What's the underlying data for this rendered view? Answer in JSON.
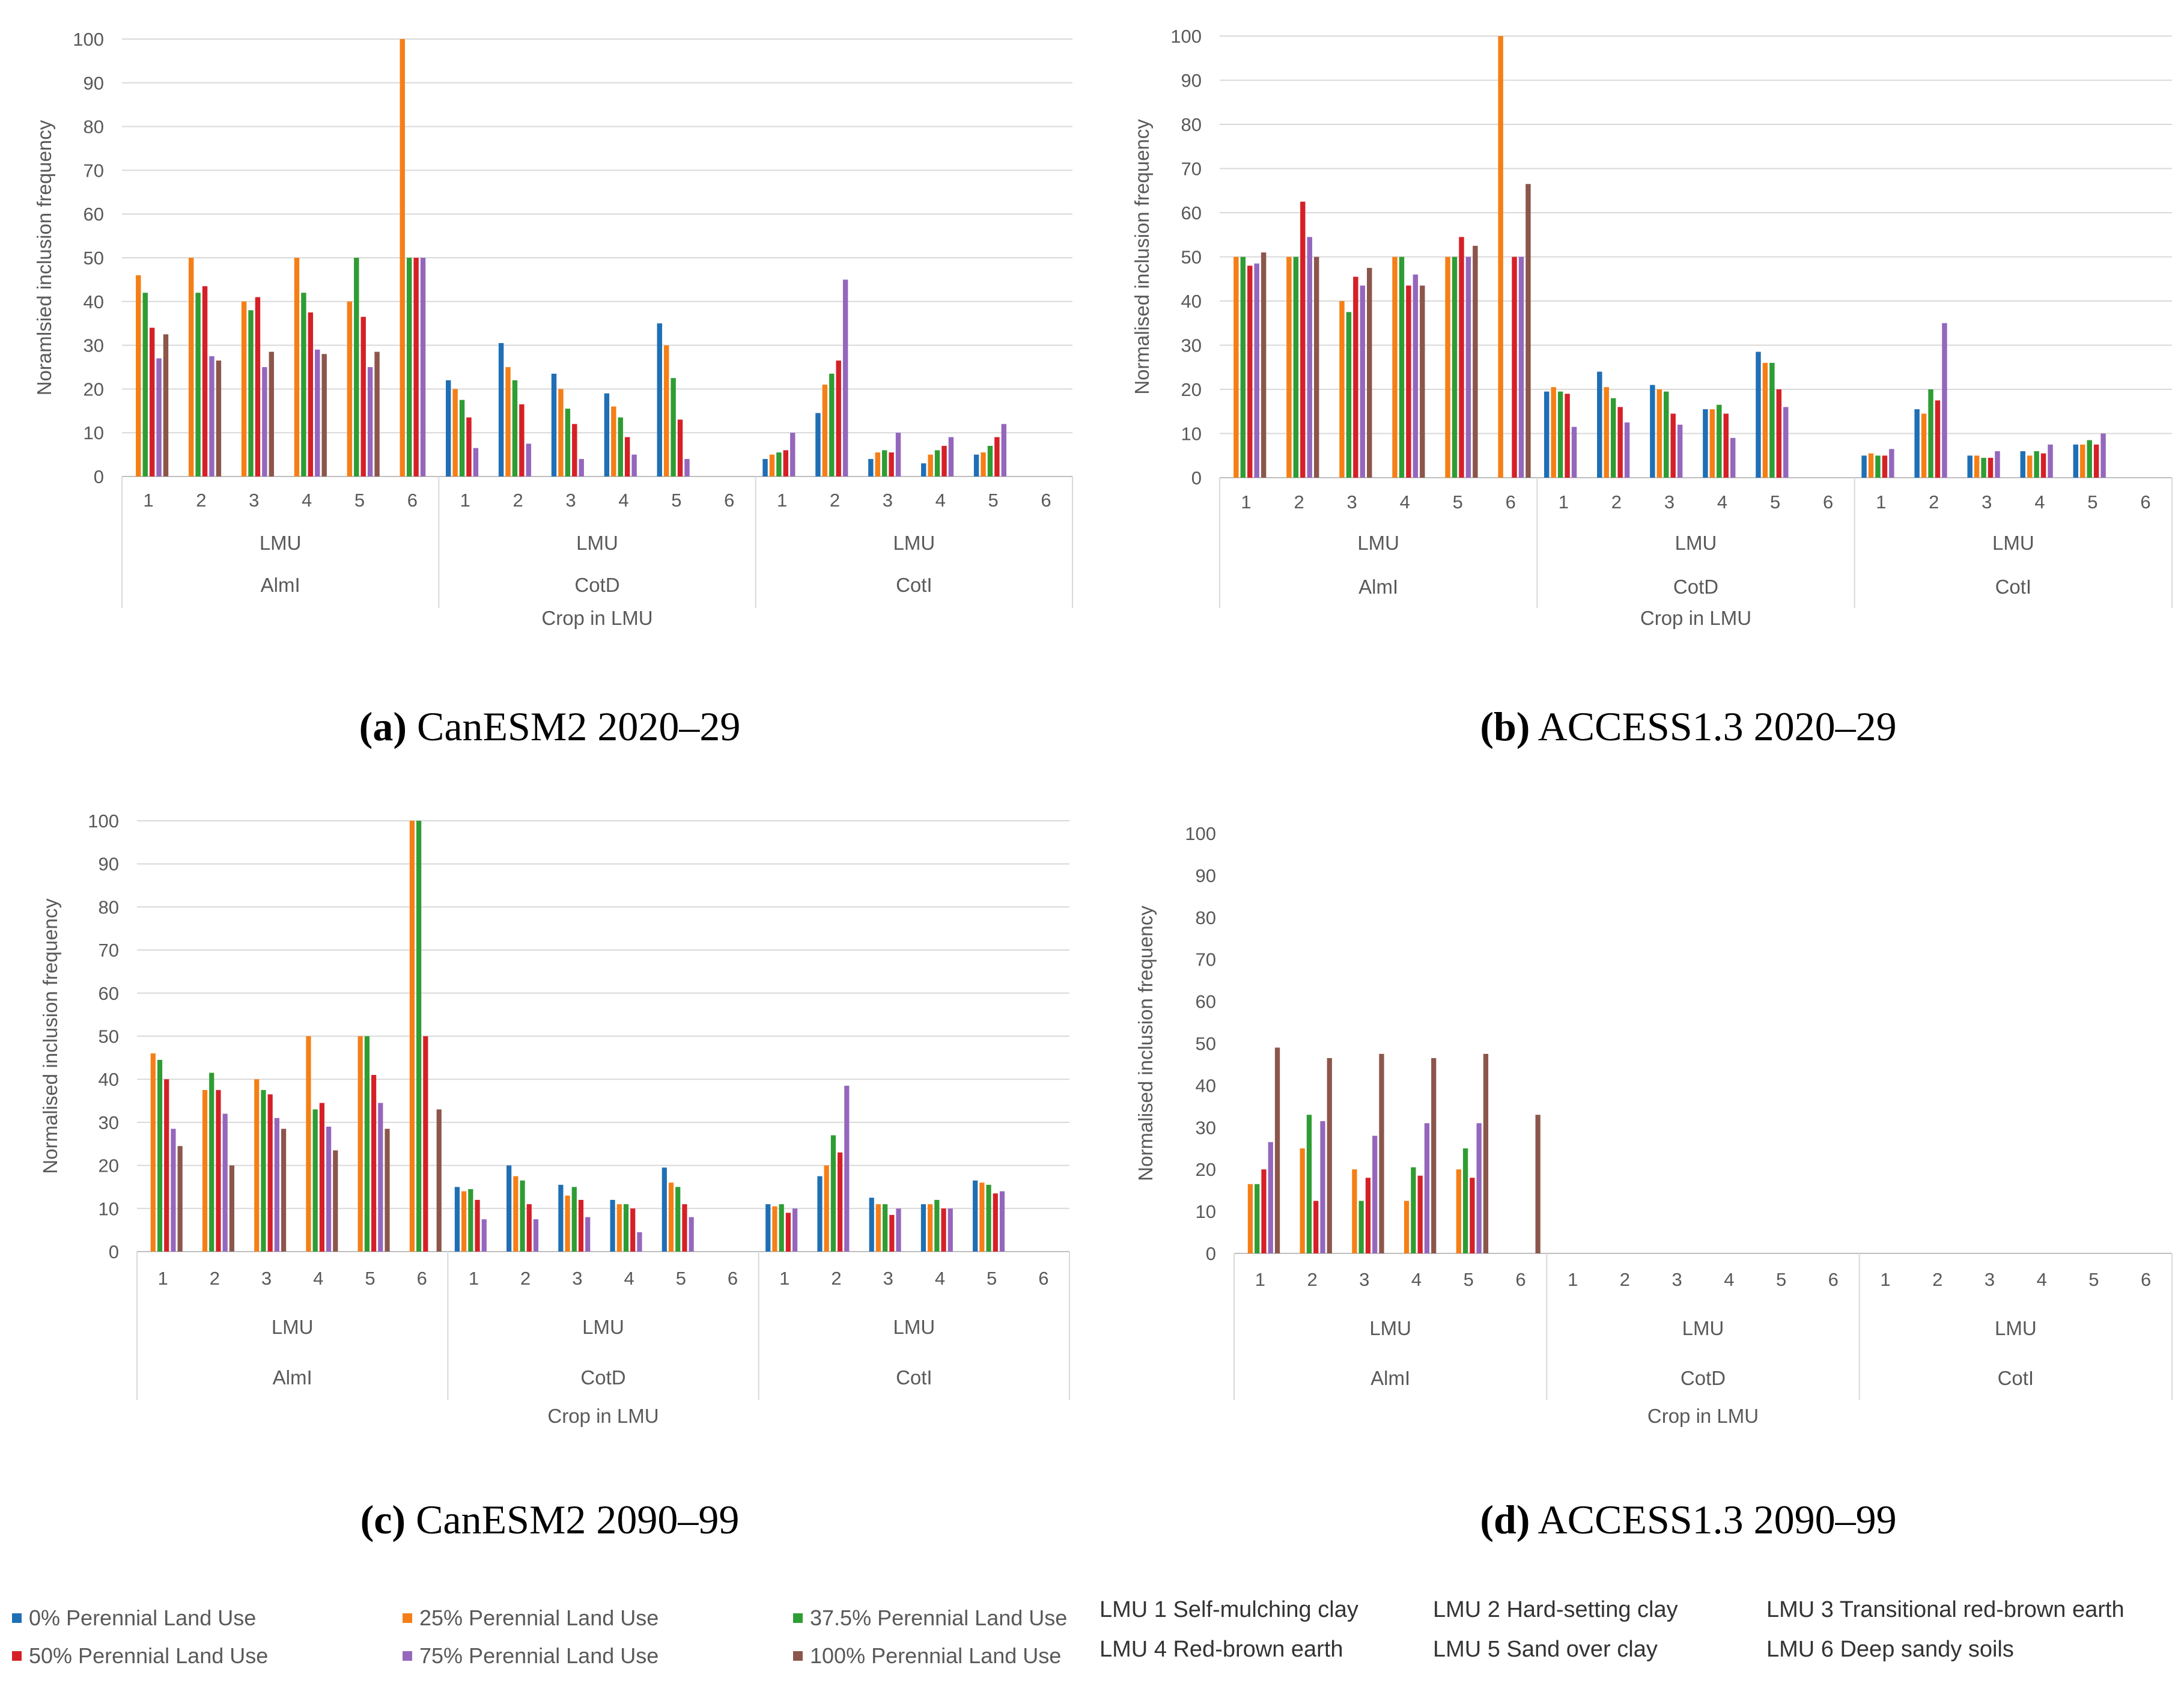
{
  "series_colors": [
    "#1f6fb5",
    "#f57f16",
    "#2e9d33",
    "#d62027",
    "#9467bd",
    "#8c564b"
  ],
  "legend": {
    "series": [
      "0% Perennial Land Use",
      "25% Perennial Land Use",
      "37.5% Perennial Land Use",
      "50% Perennial Land Use",
      "75% Perennial Land Use",
      "100% Perennial Land Use"
    ],
    "lmu": [
      "LMU 1 Self-mulching clay",
      "LMU 2 Hard-setting clay",
      "LMU 3 Transitional red-brown earth",
      "LMU 4 Red-brown earth",
      "LMU 5 Sand over clay",
      "LMU 6 Deep sandy soils"
    ]
  },
  "chart_data": [
    {
      "type": "bar",
      "caption_letter": "(a)",
      "caption_text": "CanESM2 2020–29",
      "ylabel": "Noramlsied  inclusion frequency",
      "xlabel": "Crop in LMU",
      "ylim": [
        0,
        100
      ],
      "yticks": [
        0,
        10,
        20,
        30,
        40,
        50,
        60,
        70,
        80,
        90,
        100
      ],
      "grid": true,
      "groups": [
        "AlmI",
        "CotD",
        "CotI"
      ],
      "subgroup_label": "LMU",
      "categories": [
        "1",
        "2",
        "3",
        "4",
        "5",
        "6"
      ],
      "series": [
        {
          "values": [
            [
              0,
              0,
              0,
              0,
              0,
              0
            ],
            [
              22,
              30.5,
              23.5,
              19,
              35,
              0
            ],
            [
              4,
              14.5,
              4,
              3,
              5,
              0
            ]
          ]
        },
        {
          "values": [
            [
              46,
              50,
              40,
              50,
              40,
              100
            ],
            [
              20,
              25,
              20,
              16,
              30,
              0
            ],
            [
              5,
              21,
              5.5,
              5,
              5.5,
              0
            ]
          ]
        },
        {
          "values": [
            [
              42,
              42,
              38,
              42,
              50,
              50
            ],
            [
              17.5,
              22,
              15.5,
              13.5,
              22.5,
              0
            ],
            [
              5.5,
              23.5,
              6,
              6,
              7,
              0
            ]
          ]
        },
        {
          "values": [
            [
              34,
              43.5,
              41,
              37.5,
              36.5,
              50
            ],
            [
              13.5,
              16.5,
              12,
              9,
              13,
              0
            ],
            [
              6,
              26.5,
              5.5,
              7,
              9,
              0
            ]
          ]
        },
        {
          "values": [
            [
              27,
              27.5,
              25,
              29,
              25,
              50
            ],
            [
              6.5,
              7.5,
              4,
              5,
              4,
              0
            ],
            [
              10,
              45,
              10,
              9,
              12,
              0
            ]
          ]
        },
        {
          "values": [
            [
              32.5,
              26.5,
              28.5,
              28,
              28.5,
              0
            ],
            [
              0,
              0,
              0,
              0,
              0,
              0
            ],
            [
              0,
              0,
              0,
              0,
              0,
              0
            ]
          ]
        }
      ]
    },
    {
      "type": "bar",
      "caption_letter": "(b)",
      "caption_text": "ACCESS1.3 2020–29",
      "ylabel": "Normalised inclusion frequency",
      "xlabel": "Crop in LMU",
      "ylim": [
        0,
        100
      ],
      "yticks": [
        0,
        10,
        20,
        30,
        40,
        50,
        60,
        70,
        80,
        90,
        100
      ],
      "grid": true,
      "groups": [
        "AlmI",
        "CotD",
        "CotI"
      ],
      "subgroup_label": "LMU",
      "categories": [
        "1",
        "2",
        "3",
        "4",
        "5",
        "6"
      ],
      "series": [
        {
          "values": [
            [
              0,
              0,
              0,
              0,
              0,
              0
            ],
            [
              19.5,
              24,
              21,
              15.5,
              28.5,
              0
            ],
            [
              5,
              15.5,
              5,
              6,
              7.5,
              0
            ]
          ]
        },
        {
          "values": [
            [
              50,
              50,
              40,
              50,
              50,
              100
            ],
            [
              20.5,
              20.5,
              20,
              15.5,
              26,
              0
            ],
            [
              5.5,
              14.5,
              5,
              5,
              7.5,
              0
            ]
          ]
        },
        {
          "values": [
            [
              50,
              50,
              37.5,
              50,
              50,
              0
            ],
            [
              19.5,
              18,
              19.5,
              16.5,
              26,
              0
            ],
            [
              5,
              20,
              4.5,
              6,
              8.5,
              0
            ]
          ]
        },
        {
          "values": [
            [
              48,
              62.5,
              45.5,
              43.5,
              54.5,
              50
            ],
            [
              19,
              16,
              14.5,
              14.5,
              20,
              0
            ],
            [
              5,
              17.5,
              4.5,
              5.5,
              7.5,
              0
            ]
          ]
        },
        {
          "values": [
            [
              48.5,
              54.5,
              43.5,
              46,
              50,
              50
            ],
            [
              11.5,
              12.5,
              12,
              9,
              16,
              0
            ],
            [
              6.5,
              35,
              6,
              7.5,
              10,
              0
            ]
          ]
        },
        {
          "values": [
            [
              51,
              50,
              47.5,
              43.5,
              52.5,
              66.5
            ],
            [
              0,
              0,
              0,
              0,
              0,
              0
            ],
            [
              0,
              0,
              0,
              0,
              0,
              0
            ]
          ]
        }
      ]
    },
    {
      "type": "bar",
      "caption_letter": "(c)",
      "caption_text": "CanESM2 2090–99",
      "ylabel": "Normalised inclusion frequency",
      "xlabel": "Crop in LMU",
      "ylim": [
        0,
        100
      ],
      "yticks": [
        0,
        10,
        20,
        30,
        40,
        50,
        60,
        70,
        80,
        90,
        100
      ],
      "grid": true,
      "groups": [
        "AlmI",
        "CotD",
        "CotI"
      ],
      "subgroup_label": "LMU",
      "categories": [
        "1",
        "2",
        "3",
        "4",
        "5",
        "6"
      ],
      "series": [
        {
          "values": [
            [
              0,
              0,
              0,
              0,
              0,
              0
            ],
            [
              15,
              20,
              15.5,
              12,
              19.5,
              0
            ],
            [
              11,
              17.5,
              12.5,
              11,
              16.5,
              0
            ]
          ]
        },
        {
          "values": [
            [
              46,
              37.5,
              40,
              50,
              50,
              100
            ],
            [
              14,
              17.5,
              13,
              11,
              16,
              0
            ],
            [
              10.5,
              20,
              11,
              11,
              16,
              0
            ]
          ]
        },
        {
          "values": [
            [
              44.5,
              41.5,
              37.5,
              33,
              50,
              100
            ],
            [
              14.5,
              16.5,
              15,
              11,
              15,
              0
            ],
            [
              11,
              27,
              11,
              12,
              15.5,
              0
            ]
          ]
        },
        {
          "values": [
            [
              40,
              37.5,
              36.5,
              34.5,
              41,
              50
            ],
            [
              12,
              11,
              12,
              10,
              11,
              0
            ],
            [
              9,
              23,
              8.5,
              10,
              13.5,
              0
            ]
          ]
        },
        {
          "values": [
            [
              28.5,
              32,
              31,
              29,
              34.5,
              0
            ],
            [
              7.5,
              7.5,
              8,
              4.5,
              8,
              0
            ],
            [
              10,
              38.5,
              10,
              10,
              14,
              0
            ]
          ]
        },
        {
          "values": [
            [
              24.5,
              20,
              28.5,
              23.5,
              28.5,
              33
            ],
            [
              0,
              0,
              0,
              0,
              0,
              0
            ],
            [
              0,
              0,
              0,
              0,
              0,
              0
            ]
          ]
        }
      ]
    },
    {
      "type": "bar",
      "caption_letter": "(d)",
      "caption_text": "ACCESS1.3 2090–99",
      "ylabel": "Normalised inclusion frequency",
      "xlabel": "Crop in LMU",
      "ylim": [
        0,
        100
      ],
      "yticks": [
        0,
        10,
        20,
        30,
        40,
        50,
        60,
        70,
        80,
        90,
        100
      ],
      "grid": false,
      "groups": [
        "AlmI",
        "CotD",
        "CotI"
      ],
      "subgroup_label": "LMU",
      "categories": [
        "1",
        "2",
        "3",
        "4",
        "5",
        "6"
      ],
      "series": [
        {
          "values": [
            [
              0,
              0,
              0,
              0,
              0,
              0
            ],
            [
              0,
              0,
              0,
              0,
              0,
              0
            ],
            [
              0,
              0,
              0,
              0,
              0,
              0
            ]
          ]
        },
        {
          "values": [
            [
              16.5,
              25,
              20,
              12.5,
              20,
              0
            ],
            [
              0,
              0,
              0,
              0,
              0,
              0
            ],
            [
              0,
              0,
              0,
              0,
              0,
              0
            ]
          ]
        },
        {
          "values": [
            [
              16.5,
              33,
              12.5,
              20.5,
              25,
              0
            ],
            [
              0,
              0,
              0,
              0,
              0,
              0
            ],
            [
              0,
              0,
              0,
              0,
              0,
              0
            ]
          ]
        },
        {
          "values": [
            [
              20,
              12.5,
              18,
              18.5,
              18,
              0
            ],
            [
              0,
              0,
              0,
              0,
              0,
              0
            ],
            [
              0,
              0,
              0,
              0,
              0,
              0
            ]
          ]
        },
        {
          "values": [
            [
              26.5,
              31.5,
              28,
              31,
              31,
              0
            ],
            [
              0,
              0,
              0,
              0,
              0,
              0
            ],
            [
              0,
              0,
              0,
              0,
              0,
              0
            ]
          ]
        },
        {
          "values": [
            [
              49,
              46.5,
              47.5,
              46.5,
              47.5,
              33
            ],
            [
              0,
              0,
              0,
              0,
              0,
              0
            ],
            [
              0,
              0,
              0,
              0,
              0,
              0
            ]
          ]
        }
      ]
    }
  ]
}
